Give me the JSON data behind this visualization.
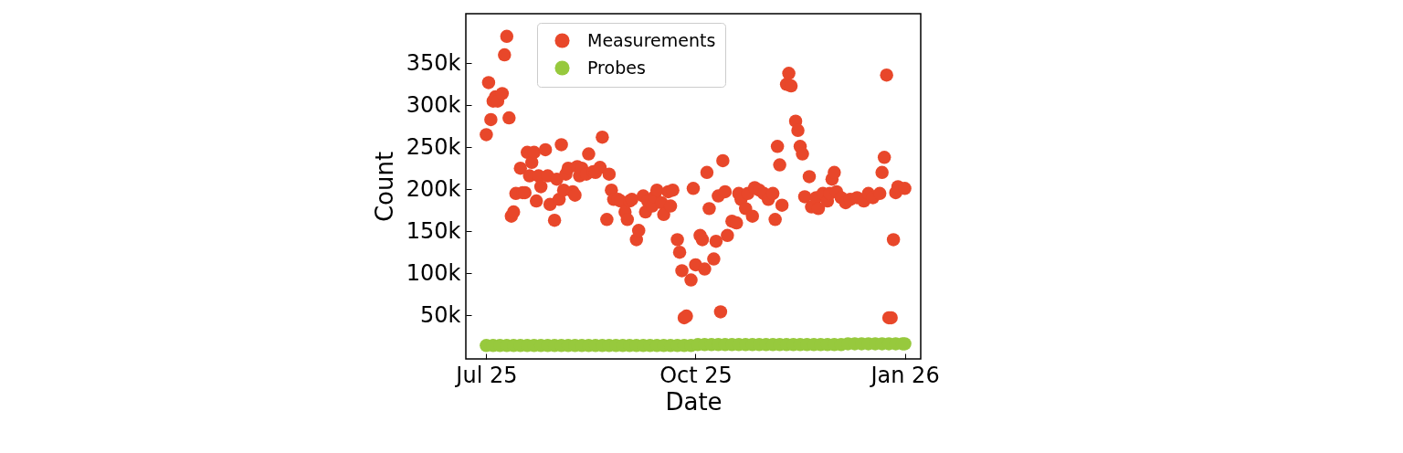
{
  "chart_data": {
    "type": "scatter",
    "xlabel": "Date",
    "ylabel": "Count",
    "legend": "top",
    "grid": false,
    "marker": "circle",
    "xlim": [
      "2025-06-22",
      "2026-01-08"
    ],
    "xticks": [
      {
        "value": "2025-07-01",
        "label": "Jul 25"
      },
      {
        "value": "2025-10-01",
        "label": "Oct 25"
      },
      {
        "value": "2026-01-01",
        "label": "Jan 26"
      }
    ],
    "ylim": [
      -2000,
      409000
    ],
    "yticks": [
      {
        "value": 50000,
        "label": "50k"
      },
      {
        "value": 100000,
        "label": "100k"
      },
      {
        "value": 150000,
        "label": "150k"
      },
      {
        "value": 200000,
        "label": "200k"
      },
      {
        "value": 250000,
        "label": "250k"
      },
      {
        "value": 300000,
        "label": "300k"
      },
      {
        "value": 350000,
        "label": "350k"
      }
    ],
    "series": [
      {
        "name": "Measurements",
        "color": "#e8472a",
        "x": [
          "2025-07-01",
          "2025-07-02",
          "2025-07-03",
          "2025-07-04",
          "2025-07-05",
          "2025-07-06",
          "2025-07-08",
          "2025-07-09",
          "2025-07-10",
          "2025-07-11",
          "2025-07-12",
          "2025-07-13",
          "2025-07-14",
          "2025-07-16",
          "2025-07-17",
          "2025-07-18",
          "2025-07-19",
          "2025-07-20",
          "2025-07-21",
          "2025-07-22",
          "2025-07-23",
          "2025-07-24",
          "2025-07-25",
          "2025-07-27",
          "2025-07-28",
          "2025-07-29",
          "2025-07-31",
          "2025-08-01",
          "2025-08-02",
          "2025-08-03",
          "2025-08-04",
          "2025-08-05",
          "2025-08-06",
          "2025-08-08",
          "2025-08-09",
          "2025-08-10",
          "2025-08-11",
          "2025-08-12",
          "2025-08-14",
          "2025-08-15",
          "2025-08-17",
          "2025-08-18",
          "2025-08-20",
          "2025-08-21",
          "2025-08-23",
          "2025-08-24",
          "2025-08-25",
          "2025-08-26",
          "2025-08-28",
          "2025-08-29",
          "2025-08-31",
          "2025-09-01",
          "2025-09-02",
          "2025-09-03",
          "2025-09-05",
          "2025-09-06",
          "2025-09-08",
          "2025-09-09",
          "2025-09-10",
          "2025-09-12",
          "2025-09-13",
          "2025-09-14",
          "2025-09-16",
          "2025-09-17",
          "2025-09-19",
          "2025-09-20",
          "2025-09-21",
          "2025-09-23",
          "2025-09-24",
          "2025-09-25",
          "2025-09-26",
          "2025-09-27",
          "2025-09-29",
          "2025-09-30",
          "2025-10-01",
          "2025-10-03",
          "2025-10-04",
          "2025-10-05",
          "2025-10-06",
          "2025-10-07",
          "2025-10-09",
          "2025-10-10",
          "2025-10-11",
          "2025-10-12",
          "2025-10-13",
          "2025-10-14",
          "2025-10-15",
          "2025-10-17",
          "2025-10-19",
          "2025-10-20",
          "2025-10-21",
          "2025-10-23",
          "2025-10-24",
          "2025-10-26",
          "2025-10-27",
          "2025-10-29",
          "2025-10-31",
          "2025-11-02",
          "2025-11-04",
          "2025-11-05",
          "2025-11-06",
          "2025-11-07",
          "2025-11-08",
          "2025-11-10",
          "2025-11-11",
          "2025-11-12",
          "2025-11-14",
          "2025-11-15",
          "2025-11-16",
          "2025-11-17",
          "2025-11-18",
          "2025-11-20",
          "2025-11-21",
          "2025-11-23",
          "2025-11-24",
          "2025-11-26",
          "2025-11-28",
          "2025-11-29",
          "2025-11-30",
          "2025-12-01",
          "2025-12-02",
          "2025-12-04",
          "2025-12-06",
          "2025-12-08",
          "2025-12-11",
          "2025-12-14",
          "2025-12-16",
          "2025-12-18",
          "2025-12-21",
          "2025-12-22",
          "2025-12-23",
          "2025-12-24",
          "2025-12-25",
          "2025-12-26",
          "2025-12-27",
          "2025-12-28",
          "2025-12-29",
          "2026-01-01"
        ],
        "values": [
          265000,
          327000,
          283000,
          305000,
          310000,
          305000,
          314000,
          360000,
          382000,
          285000,
          168000,
          173000,
          195000,
          225000,
          196000,
          196000,
          244000,
          216000,
          232000,
          244000,
          186000,
          216000,
          203000,
          247000,
          216000,
          182000,
          163000,
          212000,
          188000,
          253000,
          199000,
          218000,
          225000,
          197000,
          193000,
          227000,
          216000,
          225000,
          218000,
          242000,
          221000,
          220000,
          226000,
          262000,
          164000,
          218000,
          199000,
          188000,
          188000,
          186000,
          173000,
          164000,
          186000,
          188000,
          140000,
          151000,
          192000,
          173000,
          186000,
          180000,
          191000,
          199000,
          184000,
          170000,
          197000,
          180000,
          199000,
          140000,
          125000,
          103000,
          47000,
          49000,
          92000,
          201000,
          110000,
          145000,
          140000,
          105000,
          220000,
          177000,
          117000,
          138000,
          192000,
          54000,
          234000,
          197000,
          145000,
          162000,
          160000,
          195000,
          188000,
          177000,
          195000,
          168000,
          202000,
          199000,
          195000,
          188000,
          195000,
          164000,
          251000,
          229000,
          181000,
          325000,
          338000,
          323000,
          281000,
          270000,
          251000,
          242000,
          191000,
          215000,
          179000,
          190000,
          177000,
          195000,
          186000,
          195000,
          212000,
          220000,
          197000,
          190000,
          184000,
          188000,
          190000,
          186000,
          195000,
          190000,
          195000,
          220000,
          238000,
          336000,
          47000,
          47000,
          140000,
          196000,
          203000,
          201000
        ]
      },
      {
        "name": "Probes",
        "color": "#97c93d",
        "x": [
          "2025-07-01",
          "2025-07-04",
          "2025-07-07",
          "2025-07-10",
          "2025-07-13",
          "2025-07-16",
          "2025-07-19",
          "2025-07-22",
          "2025-07-25",
          "2025-07-28",
          "2025-07-31",
          "2025-08-03",
          "2025-08-06",
          "2025-08-09",
          "2025-08-12",
          "2025-08-15",
          "2025-08-18",
          "2025-08-21",
          "2025-08-24",
          "2025-08-27",
          "2025-08-30",
          "2025-09-02",
          "2025-09-05",
          "2025-09-08",
          "2025-09-11",
          "2025-09-14",
          "2025-09-17",
          "2025-09-20",
          "2025-09-23",
          "2025-09-26",
          "2025-09-29",
          "2025-10-02",
          "2025-10-05",
          "2025-10-08",
          "2025-10-11",
          "2025-10-14",
          "2025-10-17",
          "2025-10-20",
          "2025-10-23",
          "2025-10-26",
          "2025-10-29",
          "2025-11-01",
          "2025-11-04",
          "2025-11-07",
          "2025-11-10",
          "2025-11-13",
          "2025-11-16",
          "2025-11-19",
          "2025-11-22",
          "2025-11-25",
          "2025-11-28",
          "2025-12-01",
          "2025-12-04",
          "2025-12-07",
          "2025-12-10",
          "2025-12-13",
          "2025-12-16",
          "2025-12-19",
          "2025-12-22",
          "2025-12-25",
          "2025-12-28",
          "2025-12-31",
          "2026-01-01"
        ],
        "values": [
          14000,
          14000,
          14000,
          14000,
          14000,
          14000,
          14000,
          14000,
          14000,
          14000,
          14000,
          14000,
          14000,
          14000,
          14000,
          14000,
          14000,
          14000,
          14000,
          14000,
          14000,
          14000,
          14000,
          14000,
          14000,
          14000,
          14000,
          14000,
          14000,
          14000,
          14000,
          15000,
          15000,
          15000,
          15000,
          15000,
          15000,
          15000,
          15000,
          15000,
          15000,
          15000,
          15000,
          15000,
          15000,
          15000,
          15000,
          15000,
          15000,
          15000,
          15000,
          15000,
          15000,
          16000,
          16000,
          16000,
          16000,
          16000,
          16000,
          16000,
          16000,
          16000,
          16000
        ]
      }
    ]
  }
}
